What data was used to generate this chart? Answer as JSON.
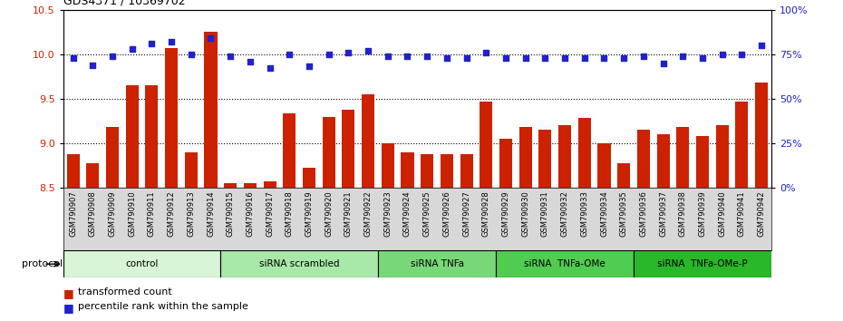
{
  "title": "GDS4371 / 10369702",
  "samples": [
    "GSM790907",
    "GSM790908",
    "GSM790909",
    "GSM790910",
    "GSM790911",
    "GSM790912",
    "GSM790913",
    "GSM790914",
    "GSM790915",
    "GSM790916",
    "GSM790917",
    "GSM790918",
    "GSM790919",
    "GSM790920",
    "GSM790921",
    "GSM790922",
    "GSM790923",
    "GSM790924",
    "GSM790925",
    "GSM790926",
    "GSM790927",
    "GSM790928",
    "GSM790929",
    "GSM790930",
    "GSM790931",
    "GSM790932",
    "GSM790933",
    "GSM790934",
    "GSM790935",
    "GSM790936",
    "GSM790937",
    "GSM790938",
    "GSM790939",
    "GSM790940",
    "GSM790941",
    "GSM790942"
  ],
  "bar_values": [
    8.88,
    8.78,
    9.18,
    9.65,
    9.65,
    10.07,
    8.9,
    10.25,
    8.55,
    8.55,
    8.57,
    9.34,
    8.72,
    9.3,
    9.38,
    9.55,
    9.0,
    8.9,
    8.88,
    8.88,
    8.88,
    9.47,
    9.05,
    9.18,
    9.15,
    9.2,
    9.28,
    9.0,
    8.78,
    9.15,
    9.1,
    9.18,
    9.08,
    9.2,
    9.47,
    9.68
  ],
  "blue_values": [
    73,
    69,
    74,
    78,
    81,
    82,
    75,
    84,
    74,
    71,
    67,
    75,
    68,
    75,
    76,
    77,
    74,
    74,
    74,
    73,
    73,
    76,
    73,
    73,
    73,
    73,
    73,
    73,
    73,
    74,
    70,
    74,
    73,
    75,
    75,
    80
  ],
  "groups": [
    {
      "label": "control",
      "start": 0,
      "end": 8,
      "color": "#d8f5d8"
    },
    {
      "label": "siRNA scrambled",
      "start": 8,
      "end": 16,
      "color": "#a8e8a8"
    },
    {
      "label": "siRNA TNFa",
      "start": 16,
      "end": 22,
      "color": "#78d878"
    },
    {
      "label": "siRNA  TNFa-OMe",
      "start": 22,
      "end": 29,
      "color": "#50cc50"
    },
    {
      "label": "siRNA  TNFa-OMe-P",
      "start": 29,
      "end": 36,
      "color": "#28b828"
    }
  ],
  "ylim_left": [
    8.5,
    10.5
  ],
  "ylim_right": [
    0,
    100
  ],
  "yticks_left": [
    8.5,
    9.0,
    9.5,
    10.0,
    10.5
  ],
  "yticks_right": [
    0,
    25,
    50,
    75,
    100
  ],
  "bar_color": "#cc2200",
  "dot_color": "#2222cc",
  "bar_bottom": 8.5,
  "hline_color": "#555555"
}
